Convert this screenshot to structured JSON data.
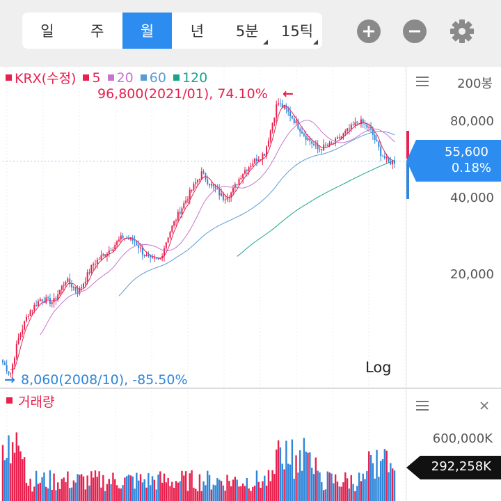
{
  "tabs": [
    {
      "label": "일",
      "active": false,
      "dropdown": false
    },
    {
      "label": "주",
      "active": false,
      "dropdown": false
    },
    {
      "label": "월",
      "active": true,
      "dropdown": false
    },
    {
      "label": "년",
      "active": false,
      "dropdown": false
    },
    {
      "label": "5분",
      "active": false,
      "dropdown": true
    },
    {
      "label": "15틱",
      "active": false,
      "dropdown": true
    }
  ],
  "toolbar": {
    "zoom_in_icon": "plus-circle-icon",
    "zoom_out_icon": "minus-circle-icon",
    "settings_icon": "gear-icon"
  },
  "legend": {
    "name": "KRX(수정)",
    "ma5": "5",
    "ma20": "20",
    "ma60": "60",
    "ma120": "120"
  },
  "colors": {
    "up": "#e8204d",
    "down": "#2f86d9",
    "ma5": "#e8204d",
    "ma20": "#c774d0",
    "ma60": "#5b9bd5",
    "ma120": "#1aa38b",
    "current_bg": "#2d8cf0"
  },
  "annotations": {
    "high": "96,800(2021/01), 74.10%",
    "low": "8,060(2008/10), -85.50%",
    "high_arrow": "←",
    "low_arrow": "→"
  },
  "price_axis": {
    "count_label": "200봉",
    "ticks": [
      "80,000",
      "40,000",
      "20,000"
    ],
    "scale_label": "Log",
    "current_price": "55,600",
    "current_change": "0.18%"
  },
  "volume": {
    "title": "거래량",
    "tick": "600,000K",
    "current": "292,258K"
  },
  "chart_data": [
    {
      "type": "candlestick",
      "title": "KRX(수정)",
      "interval": "월",
      "bars": 200,
      "scale": "log",
      "y_ticks": [
        20000,
        40000,
        80000
      ],
      "high": {
        "value": 96800,
        "date": "2021/01",
        "pct": 74.1
      },
      "low": {
        "value": 8060,
        "date": "2008/10",
        "pct": -85.5
      },
      "last": {
        "value": 55600,
        "change_pct": 0.18
      },
      "moving_averages": [
        5,
        20,
        60,
        120
      ],
      "close_path": [
        [
          0,
          9000
        ],
        [
          6,
          8060
        ],
        [
          12,
          11000
        ],
        [
          20,
          14000
        ],
        [
          30,
          16000
        ],
        [
          40,
          15500
        ],
        [
          50,
          19000
        ],
        [
          60,
          17000
        ],
        [
          72,
          22000
        ],
        [
          85,
          25000
        ],
        [
          95,
          28000
        ],
        [
          105,
          27000
        ],
        [
          112,
          24000
        ],
        [
          118,
          22500
        ],
        [
          125,
          23000
        ],
        [
          132,
          29000
        ],
        [
          140,
          35000
        ],
        [
          150,
          43000
        ],
        [
          158,
          50000
        ],
        [
          165,
          45000
        ],
        [
          175,
          40000
        ],
        [
          182,
          42000
        ],
        [
          190,
          50000
        ],
        [
          200,
          56000
        ],
        [
          208,
          60000
        ],
        [
          213,
          75000
        ],
        [
          218,
          95000
        ],
        [
          228,
          85000
        ],
        [
          240,
          70000
        ],
        [
          250,
          62000
        ],
        [
          262,
          65000
        ],
        [
          272,
          72000
        ],
        [
          283,
          80000
        ],
        [
          292,
          74000
        ],
        [
          300,
          60000
        ],
        [
          306,
          55000
        ],
        [
          311,
          55600
        ]
      ]
    },
    {
      "type": "bar",
      "title": "거래량",
      "unit": "K",
      "y_ticks": [
        600000
      ],
      "last": 292258
    }
  ]
}
